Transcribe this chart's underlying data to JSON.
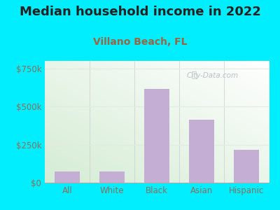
{
  "title": "Median household income in 2022",
  "subtitle": "Villano Beach, FL",
  "categories": [
    "All",
    "White",
    "Black",
    "Asian",
    "Hispanic"
  ],
  "values": [
    75000,
    75000,
    615000,
    415000,
    215000
  ],
  "bar_color": "#c4aed4",
  "title_fontsize": 13,
  "subtitle_fontsize": 10,
  "subtitle_color": "#996644",
  "title_color": "#222222",
  "background_outer": "#00eeff",
  "background_inner_left": "#d4ecd4",
  "background_inner_right": "#f0f8f0",
  "background_top": "#f8fcf8",
  "yticks": [
    0,
    250000,
    500000,
    750000
  ],
  "ytick_labels": [
    "$0",
    "$250k",
    "$500k",
    "$750k"
  ],
  "ylim": [
    0,
    800000
  ],
  "watermark": "City-Data.com",
  "tick_color": "#887060",
  "axis_label_fontsize": 8.5,
  "grid_color": "#e0ece0"
}
